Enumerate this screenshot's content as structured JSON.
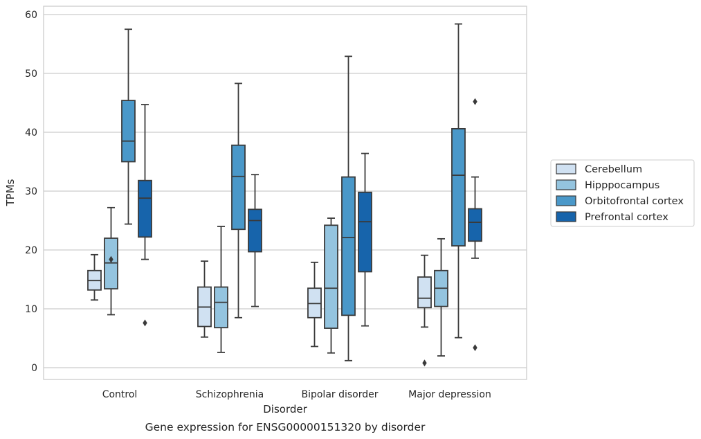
{
  "caption": "Gene expression for ENSG00000151320 by disorder",
  "chart_data": {
    "type": "box",
    "title": "",
    "xlabel": "Disorder",
    "ylabel": "TPMs",
    "ylim": [
      -2,
      61.5
    ],
    "yticks": [
      0,
      10,
      20,
      30,
      40,
      50,
      60
    ],
    "grid": true,
    "legend_position": "right",
    "categories": [
      "Control",
      "Schizophrenia",
      "Bipolar disorder",
      "Major depression"
    ],
    "series": [
      {
        "name": "Cerebellum",
        "color": "#d0e1f2",
        "boxes": [
          {
            "whislo": 11.5,
            "q1": 13.2,
            "med": 14.8,
            "q3": 16.5,
            "whishi": 19.2,
            "fliers": []
          },
          {
            "whislo": 5.2,
            "q1": 7.0,
            "med": 10.3,
            "q3": 13.7,
            "whishi": 18.1,
            "fliers": []
          },
          {
            "whislo": 3.6,
            "q1": 8.5,
            "med": 10.9,
            "q3": 13.5,
            "whishi": 17.9,
            "fliers": []
          },
          {
            "whislo": 6.9,
            "q1": 10.2,
            "med": 11.8,
            "q3": 15.4,
            "whishi": 19.1,
            "fliers": [
              0.8
            ]
          }
        ]
      },
      {
        "name": "Hipppocampus",
        "color": "#94c4df",
        "boxes": [
          {
            "whislo": 9.0,
            "q1": 13.4,
            "med": 17.8,
            "q3": 22.0,
            "whishi": 27.2,
            "fliers": [
              18.4
            ]
          },
          {
            "whislo": 2.6,
            "q1": 6.8,
            "med": 11.1,
            "q3": 13.7,
            "whishi": 24.0,
            "fliers": []
          },
          {
            "whislo": 2.5,
            "q1": 6.7,
            "med": 13.5,
            "q3": 24.2,
            "whishi": 25.4,
            "fliers": []
          },
          {
            "whislo": 2.0,
            "q1": 10.4,
            "med": 13.5,
            "q3": 16.5,
            "whishi": 21.9,
            "fliers": []
          }
        ]
      },
      {
        "name": "Orbitofrontal cortex",
        "color": "#4a98c9",
        "boxes": [
          {
            "whislo": 24.4,
            "q1": 35.0,
            "med": 38.5,
            "q3": 45.4,
            "whishi": 57.5,
            "fliers": []
          },
          {
            "whislo": 8.5,
            "q1": 23.5,
            "med": 32.5,
            "q3": 37.8,
            "whishi": 48.3,
            "fliers": []
          },
          {
            "whislo": 1.2,
            "q1": 8.9,
            "med": 22.1,
            "q3": 32.4,
            "whishi": 52.9,
            "fliers": []
          },
          {
            "whislo": 5.1,
            "q1": 20.7,
            "med": 32.7,
            "q3": 40.6,
            "whishi": 58.4,
            "fliers": []
          }
        ]
      },
      {
        "name": "Prefrontal cortex",
        "color": "#1764ab",
        "boxes": [
          {
            "whislo": 18.4,
            "q1": 22.2,
            "med": 28.8,
            "q3": 31.8,
            "whishi": 44.7,
            "fliers": [
              7.6
            ]
          },
          {
            "whislo": 10.4,
            "q1": 19.7,
            "med": 25.0,
            "q3": 26.9,
            "whishi": 32.8,
            "fliers": []
          },
          {
            "whislo": 7.1,
            "q1": 16.3,
            "med": 24.8,
            "q3": 29.8,
            "whishi": 36.4,
            "fliers": []
          },
          {
            "whislo": 18.6,
            "q1": 21.5,
            "med": 24.7,
            "q3": 27.0,
            "whishi": 32.4,
            "fliers": [
              45.2,
              3.4
            ]
          }
        ]
      }
    ]
  }
}
